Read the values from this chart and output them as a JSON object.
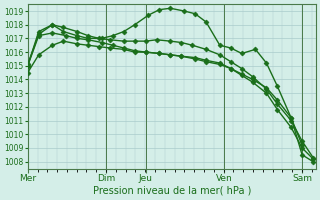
{
  "title": "",
  "xlabel": "Pression niveau de la mer( hPa )",
  "ylabel": "",
  "bg_color": "#d4eee8",
  "grid_color": "#aacccc",
  "line_color": "#1a6e1a",
  "ylim": [
    1007.5,
    1019.5
  ],
  "yticks": [
    1008,
    1009,
    1010,
    1011,
    1012,
    1013,
    1014,
    1015,
    1016,
    1017,
    1018,
    1019
  ],
  "day_labels": [
    "Mer",
    "Dim",
    "Jeu",
    "Ven",
    "Sam"
  ],
  "day_positions": [
    0.0,
    0.285,
    0.43,
    0.715,
    1.0
  ],
  "xlim": [
    0.0,
    1.05
  ],
  "series": [
    {
      "x": [
        0.0,
        0.04,
        0.09,
        0.13,
        0.18,
        0.22,
        0.26,
        0.3,
        0.35,
        0.39,
        0.43,
        0.48,
        0.52,
        0.56,
        0.61,
        0.65,
        0.7,
        0.74,
        0.78,
        0.82,
        0.87,
        0.91,
        0.96,
        1.0
      ],
      "y": [
        1014.5,
        1015.8,
        1016.5,
        1016.8,
        1016.6,
        1016.5,
        1016.4,
        1016.3,
        1016.2,
        1016.0,
        1016.0,
        1015.9,
        1015.8,
        1015.7,
        1015.5,
        1015.3,
        1015.1,
        1014.8,
        1014.4,
        1014.0,
        1013.4,
        1012.5,
        1011.2,
        1009.2
      ]
    },
    {
      "x": [
        0.0,
        0.04,
        0.09,
        0.14,
        0.18,
        0.22,
        0.27,
        0.31,
        0.35,
        0.39,
        0.43,
        0.48,
        0.52,
        0.56,
        0.61,
        0.65,
        0.7,
        0.74,
        0.78,
        0.82,
        0.87,
        0.91,
        0.96,
        1.0,
        1.04
      ],
      "y": [
        1015.0,
        1017.2,
        1017.4,
        1017.2,
        1017.0,
        1016.9,
        1016.7,
        1016.5,
        1016.3,
        1016.1,
        1016.0,
        1015.9,
        1015.8,
        1015.7,
        1015.6,
        1015.4,
        1015.2,
        1014.8,
        1014.3,
        1013.8,
        1013.0,
        1011.8,
        1010.5,
        1009.0,
        1008.2
      ]
    },
    {
      "x": [
        0.0,
        0.04,
        0.09,
        0.13,
        0.18,
        0.22,
        0.26,
        0.3,
        0.35,
        0.39,
        0.43,
        0.47,
        0.52,
        0.56,
        0.6,
        0.65,
        0.7,
        0.74,
        0.78,
        0.82,
        0.87,
        0.91,
        0.96,
        1.0,
        1.04
      ],
      "y": [
        1015.1,
        1017.3,
        1018.0,
        1017.8,
        1017.5,
        1017.2,
        1017.0,
        1016.9,
        1016.8,
        1016.8,
        1016.8,
        1016.9,
        1016.8,
        1016.7,
        1016.5,
        1016.2,
        1015.8,
        1015.3,
        1014.8,
        1014.2,
        1013.3,
        1012.2,
        1011.0,
        1009.5,
        1008.3
      ]
    },
    {
      "x": [
        0.0,
        0.04,
        0.09,
        0.13,
        0.18,
        0.22,
        0.27,
        0.31,
        0.35,
        0.39,
        0.44,
        0.48,
        0.52,
        0.57,
        0.61,
        0.65,
        0.7,
        0.74,
        0.78,
        0.83,
        0.87,
        0.91,
        0.96,
        1.0,
        1.04
      ],
      "y": [
        1015.0,
        1017.5,
        1018.0,
        1017.5,
        1017.2,
        1017.0,
        1017.0,
        1017.2,
        1017.5,
        1018.0,
        1018.7,
        1019.1,
        1019.2,
        1019.0,
        1018.8,
        1018.2,
        1016.5,
        1016.3,
        1015.9,
        1016.2,
        1015.2,
        1013.5,
        1011.2,
        1008.5,
        1008.0
      ]
    }
  ],
  "marker": "D",
  "marker_size": 2.5,
  "line_width": 1.0
}
